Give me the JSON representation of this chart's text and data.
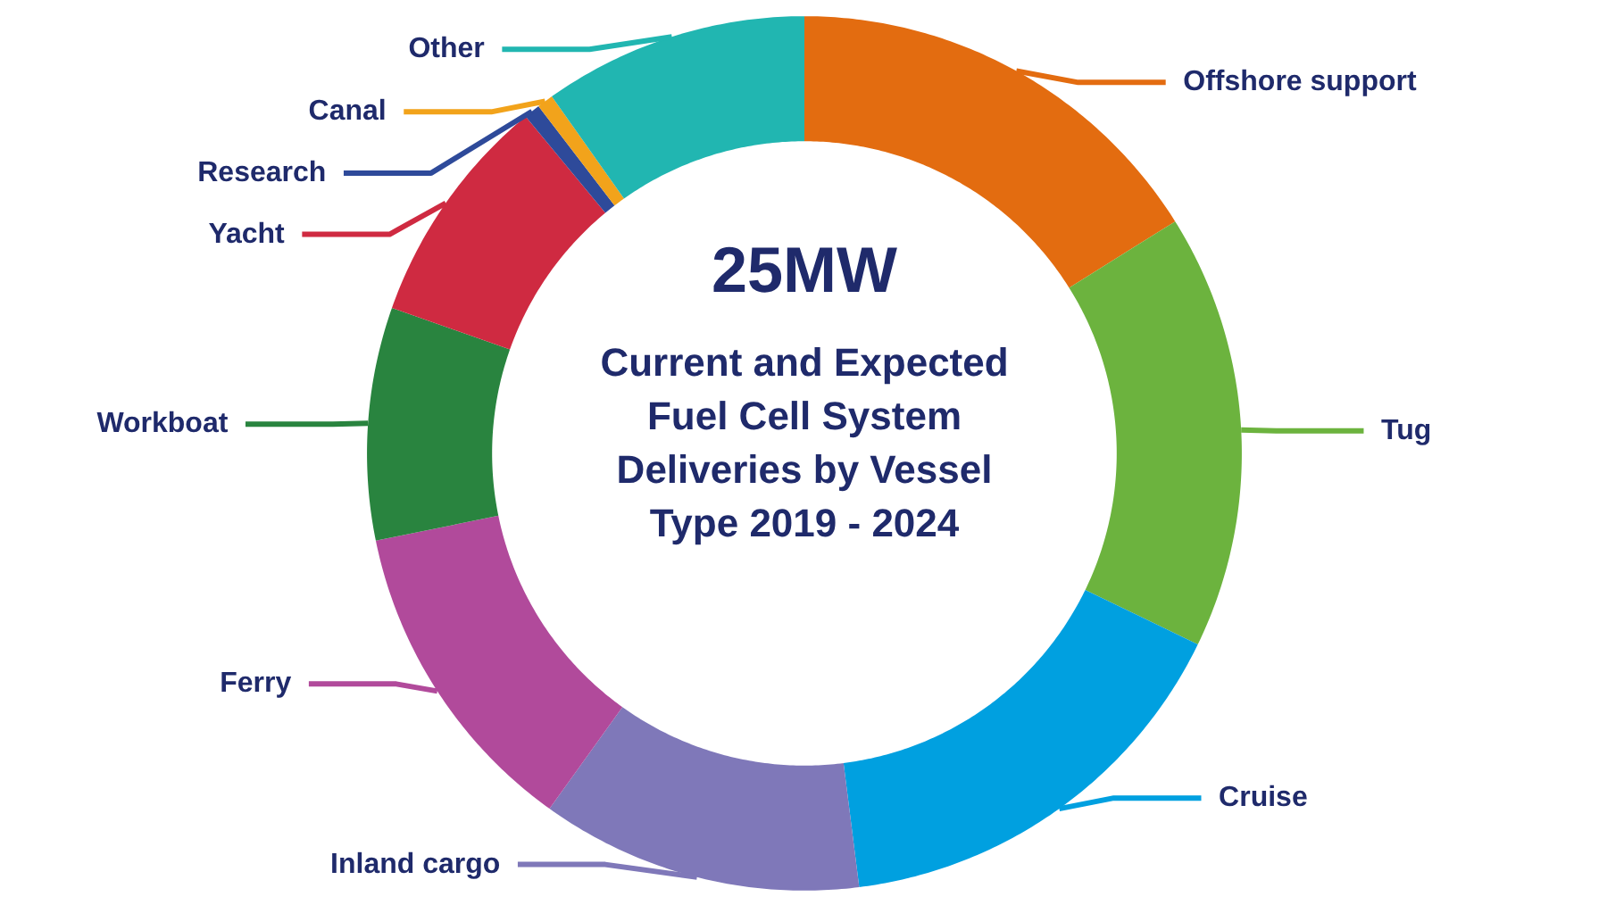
{
  "chart_data": {
    "type": "donut",
    "title": "Current and Expected Fuel Cell System Deliveries by Vessel Type 2019 - 2024",
    "annotations": [
      "25MW"
    ],
    "categories": [
      "Offshore support",
      "Tug",
      "Cruise",
      "Inland cargo",
      "Ferry",
      "Workboat",
      "Yacht",
      "Research",
      "Canal",
      "Other"
    ],
    "values": [
      16.1,
      16.1,
      15.8,
      11.9,
      11.9,
      8.6,
      8.6,
      0.6,
      0.6,
      9.8
    ],
    "colors": [
      "#e36c10",
      "#6cb33e",
      "#00a0e0",
      "#7f78b9",
      "#b14a9b",
      "#29843f",
      "#cf2a41",
      "#2e4a9a",
      "#f2a31b",
      "#21b6b1"
    ]
  }
}
